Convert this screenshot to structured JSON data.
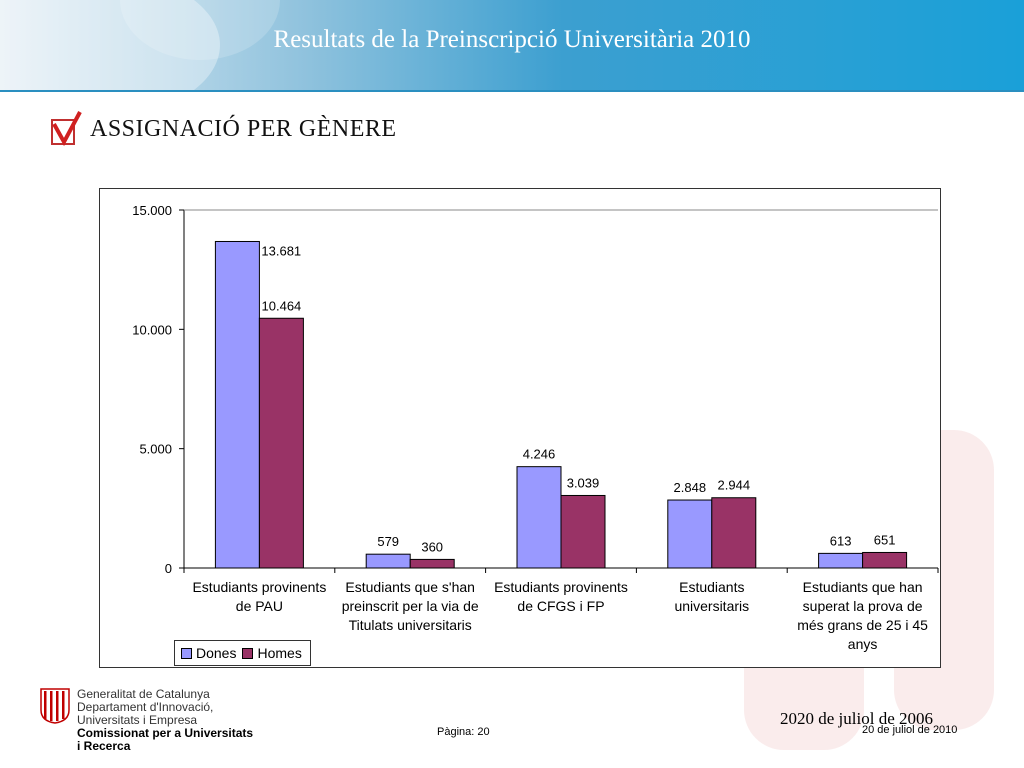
{
  "header": {
    "title": "Resultats de la Preinscripció Universitària 2010"
  },
  "section": {
    "title": "ASSIGNACIÓ PER GÈNERE"
  },
  "chart_data": {
    "type": "bar",
    "categories": [
      "Estudiants provinents de PAU",
      "Estudiants que s'han preinscrit per la via de Titulats universitaris",
      "Estudiants provinents de CFGS i FP",
      "Estudiants universitaris",
      "Estudiants que han superat la prova de més grans de 25 i 45 anys"
    ],
    "category_lines": [
      [
        "Estudiants provinents",
        "de PAU"
      ],
      [
        "Estudiants que s'han",
        "preinscrit per la via de",
        "Titulats universitaris"
      ],
      [
        "Estudiants provinents",
        "de CFGS i FP"
      ],
      [
        "Estudiants",
        "universitaris"
      ],
      [
        "Estudiants que han",
        "superat la prova de",
        "més grans de 25 i 45",
        "anys"
      ]
    ],
    "series": [
      {
        "name": "Dones",
        "color": "#9999ff",
        "values": [
          13681,
          579,
          4246,
          2848,
          613
        ],
        "labels": [
          "13.681",
          "579",
          "4.246",
          "2.848",
          "613"
        ]
      },
      {
        "name": "Homes",
        "color": "#993366",
        "values": [
          10464,
          360,
          3039,
          2944,
          651
        ],
        "labels": [
          "10.464",
          "360",
          "3.039",
          "2.944",
          "651"
        ]
      }
    ],
    "yticks": [
      0,
      5000,
      10000,
      15000
    ],
    "ytick_labels": [
      "0",
      "5.000",
      "10.000",
      "15.000"
    ],
    "ylim": [
      0,
      15000
    ],
    "legend_position": "bottom-left",
    "grid": false
  },
  "footer": {
    "org_line1": "Generalitat de Catalunya",
    "org_line2": "Departament d'Innovació,",
    "org_line3": "Universitats i Empresa",
    "org_line4": "Comissionat per a Universitats",
    "org_line5": "i Recerca",
    "page": "Pàgina: 20",
    "date_big": "2020 de juliol de 2006",
    "date_small": "20 de juliol de 2010"
  }
}
